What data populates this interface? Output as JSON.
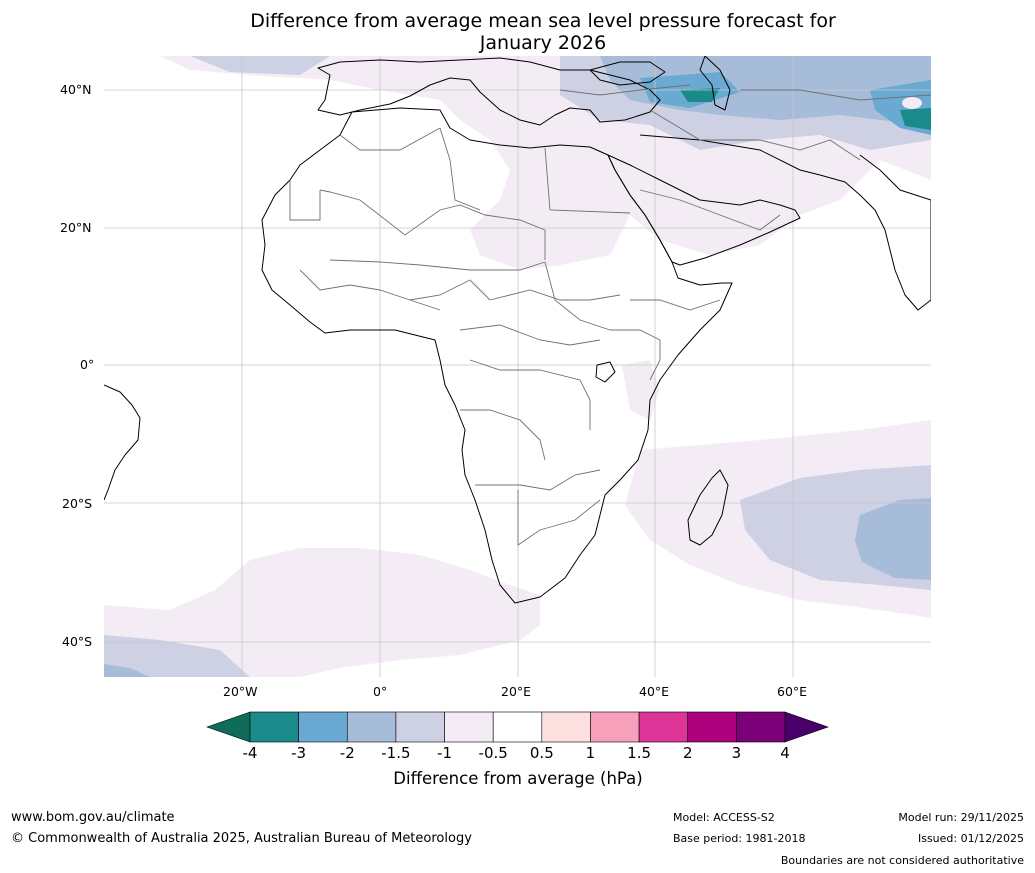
{
  "title": {
    "line1": "Difference from average mean sea level pressure forecast for",
    "line2": "January 2026"
  },
  "map": {
    "lat_labels": [
      "40°N",
      "20°N",
      "0°",
      "20°S",
      "40°S"
    ],
    "lon_labels": [
      "20°W",
      "0°",
      "20°E",
      "40°E",
      "60°E"
    ],
    "lat_range": [
      -45,
      45
    ],
    "lon_range": [
      -40,
      80
    ]
  },
  "colorbar": {
    "ticks": [
      "-4",
      "-3",
      "-2",
      "-1.5",
      "-1",
      "-0.5",
      "0.5",
      "1",
      "1.5",
      "2",
      "3",
      "4"
    ],
    "colors": [
      "#1a8a8a",
      "#6aaad2",
      "#a7bcd9",
      "#ced0e4",
      "#f3ecf5",
      "#ffffff",
      "#fde0e0",
      "#f7a0bc",
      "#dd3497",
      "#ae017e",
      "#7a0177"
    ],
    "under_color": "#0f6b5a",
    "over_color": "#49006a",
    "label": "Difference from average (hPa)"
  },
  "footer": {
    "url": "www.bom.gov.au/climate",
    "copyright": "© Commonwealth of Australia 2025, Australian Bureau of Meteorology",
    "model": "Model: ACCESS-S2",
    "base_period": "Base period: 1981-2018",
    "model_run": "Model run: 29/11/2025",
    "issued": "Issued: 01/12/2025",
    "disclaimer": "Boundaries are not considered authoritative"
  }
}
